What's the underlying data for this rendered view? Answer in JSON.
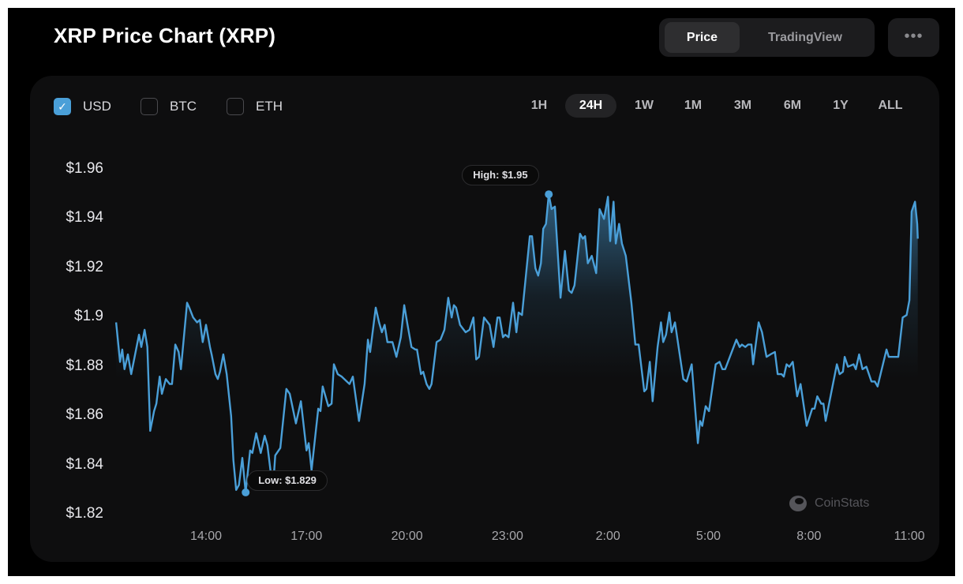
{
  "header": {
    "title": "XRP Price Chart (XRP)",
    "view_toggle": [
      {
        "label": "Price",
        "active": true
      },
      {
        "label": "TradingView",
        "active": false
      }
    ],
    "more_icon": "more-horizontal-icon",
    "more_label": "•••"
  },
  "currencies": [
    {
      "label": "USD",
      "checked": true
    },
    {
      "label": "BTC",
      "checked": false
    },
    {
      "label": "ETH",
      "checked": false
    }
  ],
  "check_glyph": "✓",
  "ranges": [
    {
      "label": "1H",
      "active": false
    },
    {
      "label": "24H",
      "active": true
    },
    {
      "label": "1W",
      "active": false
    },
    {
      "label": "1M",
      "active": false
    },
    {
      "label": "3M",
      "active": false
    },
    {
      "label": "6M",
      "active": false
    },
    {
      "label": "1Y",
      "active": false
    },
    {
      "label": "ALL",
      "active": false
    }
  ],
  "watermark": "CoinStats",
  "colors": {
    "line": "#4a9fd8",
    "background": "#0e0e0f",
    "accent": "#4a9fd8"
  },
  "chart_data": {
    "type": "area",
    "title": "",
    "xlabel": "",
    "ylabel": "",
    "currency": "USD",
    "ylim": [
      1.82,
      1.96
    ],
    "y_ticks": [
      1.96,
      1.94,
      1.92,
      1.9,
      1.88,
      1.86,
      1.84,
      1.82
    ],
    "y_tick_labels": [
      "$1.96",
      "$1.94",
      "$1.92",
      "$1.9",
      "$1.88",
      "$1.86",
      "$1.84",
      "$1.82"
    ],
    "x_tick_labels": [
      "14:00",
      "17:00",
      "20:00",
      "23:00",
      "2:00",
      "5:00",
      "8:00",
      "11:00"
    ],
    "grid": false,
    "legend": "none",
    "annotations": {
      "high": {
        "label": "High: $1.95",
        "time": "0:14",
        "value": 1.95
      },
      "low": {
        "label": "Low: $1.829",
        "time": "15:11",
        "value": 1.829
      }
    },
    "x": [
      "11:19",
      "11:26",
      "11:30",
      "11:34",
      "11:40",
      "11:46",
      "12:00",
      "12:04",
      "12:10",
      "12:15",
      "12:20",
      "12:27",
      "12:31",
      "12:37",
      "12:41",
      "12:48",
      "12:55",
      "12:59",
      "13:05",
      "13:11",
      "13:15",
      "13:26",
      "13:30",
      "13:37",
      "13:44",
      "13:49",
      "13:54",
      "14:00",
      "14:07",
      "14:10",
      "14:17",
      "14:21",
      "14:25",
      "14:31",
      "14:37",
      "14:45",
      "14:49",
      "14:54",
      "14:59",
      "15:05",
      "15:11",
      "15:19",
      "15:23",
      "15:30",
      "15:38",
      "15:45",
      "15:50",
      "15:56",
      "16:00",
      "16:04",
      "16:13",
      "16:24",
      "16:30",
      "16:41",
      "16:50",
      "17:00",
      "17:04",
      "17:09",
      "17:21",
      "17:25",
      "17:29",
      "17:39",
      "17:45",
      "17:49",
      "17:56",
      "18:03",
      "18:17",
      "18:23",
      "18:34",
      "18:44",
      "18:50",
      "18:54",
      "19:04",
      "19:10",
      "19:15",
      "19:20",
      "19:25",
      "19:34",
      "19:41",
      "19:49",
      "19:55",
      "20:01",
      "20:08",
      "20:15",
      "20:18",
      "20:25",
      "20:29",
      "20:35",
      "20:40",
      "20:44",
      "20:53",
      "21:00",
      "21:07",
      "21:14",
      "21:20",
      "21:24",
      "21:28",
      "21:35",
      "21:45",
      "21:52",
      "21:59",
      "22:04",
      "22:09",
      "22:18",
      "22:28",
      "22:35",
      "22:42",
      "22:46",
      "22:52",
      "22:56",
      "23:02",
      "23:10",
      "23:16",
      "23:20",
      "23:26",
      "23:40",
      "23:44",
      "23:50",
      "23:55",
      "0:00",
      "0:04",
      "0:09",
      "0:14",
      "0:19",
      "0:25",
      "0:35",
      "0:43",
      "0:50",
      "0:55",
      "1:00",
      "1:10",
      "1:15",
      "1:19",
      "1:24",
      "1:31",
      "1:39",
      "1:45",
      "1:53",
      "2:00",
      "2:04",
      "2:10",
      "2:14",
      "2:20",
      "2:25",
      "2:32",
      "2:42",
      "2:49",
      "2:55",
      "3:05",
      "3:09",
      "3:15",
      "3:20",
      "3:29",
      "3:35",
      "3:39",
      "3:44",
      "3:50",
      "3:54",
      "4:00",
      "4:15",
      "4:21",
      "4:30",
      "4:41",
      "4:45",
      "4:49",
      "4:55",
      "5:01",
      "5:13",
      "5:20",
      "5:25",
      "5:30",
      "5:50",
      "5:56",
      "6:00",
      "6:06",
      "6:11",
      "6:17",
      "6:20",
      "6:30",
      "6:36",
      "6:44",
      "6:51",
      "6:59",
      "7:04",
      "7:11",
      "7:15",
      "7:20",
      "7:25",
      "7:31",
      "7:39",
      "7:45",
      "7:56",
      "8:06",
      "8:10",
      "8:15",
      "8:22",
      "8:26",
      "8:30",
      "8:50",
      "8:55",
      "9:01",
      "9:04",
      "9:10",
      "9:20",
      "9:24",
      "9:30",
      "9:36",
      "9:43",
      "9:52",
      "9:58",
      "10:03",
      "10:19",
      "10:23",
      "10:36",
      "10:40",
      "10:48",
      "10:55",
      "11:00",
      "11:04",
      "11:10",
      "11:14",
      "11:15"
    ],
    "series": [
      {
        "values": [
          1.898,
          1.882,
          1.887,
          1.879,
          1.885,
          1.877,
          1.893,
          1.888,
          1.895,
          1.888,
          1.854,
          1.862,
          1.865,
          1.876,
          1.869,
          1.875,
          1.873,
          1.873,
          1.889,
          1.886,
          1.879,
          1.906,
          1.904,
          1.9,
          1.898,
          1.899,
          1.89,
          1.897,
          1.888,
          1.885,
          1.877,
          1.875,
          1.878,
          1.885,
          1.877,
          1.86,
          1.842,
          1.83,
          1.832,
          1.843,
          1.829,
          1.846,
          1.845,
          1.853,
          1.845,
          1.852,
          1.848,
          1.837,
          1.831,
          1.844,
          1.847,
          1.871,
          1.869,
          1.857,
          1.866,
          1.846,
          1.849,
          1.838,
          1.863,
          1.862,
          1.872,
          1.864,
          1.865,
          1.881,
          1.877,
          1.876,
          1.873,
          1.876,
          1.858,
          1.873,
          1.891,
          1.886,
          1.904,
          1.898,
          1.894,
          1.897,
          1.89,
          1.89,
          1.884,
          1.892,
          1.905,
          1.897,
          1.888,
          1.887,
          1.887,
          1.877,
          1.878,
          1.873,
          1.871,
          1.873,
          1.89,
          1.891,
          1.895,
          1.908,
          1.9,
          1.905,
          1.904,
          1.897,
          1.894,
          1.895,
          1.9,
          1.883,
          1.884,
          1.9,
          1.897,
          1.888,
          1.9,
          1.9,
          1.892,
          1.893,
          1.892,
          1.906,
          1.894,
          1.902,
          1.901,
          1.933,
          1.933,
          1.92,
          1.917,
          1.922,
          1.936,
          1.938,
          1.95,
          1.944,
          1.945,
          1.908,
          1.927,
          1.911,
          1.91,
          1.913,
          1.934,
          1.932,
          1.933,
          1.922,
          1.925,
          1.918,
          1.944,
          1.94,
          1.949,
          1.931,
          1.947,
          1.93,
          1.938,
          1.93,
          1.925,
          1.906,
          1.889,
          1.889,
          1.87,
          1.871,
          1.882,
          1.866,
          1.888,
          1.898,
          1.89,
          1.893,
          1.902,
          1.894,
          1.898,
          1.875,
          1.874,
          1.881,
          1.849,
          1.858,
          1.856,
          1.864,
          1.862,
          1.881,
          1.882,
          1.879,
          1.879,
          1.891,
          1.888,
          1.889,
          1.888,
          1.889,
          1.889,
          1.881,
          1.898,
          1.894,
          1.884,
          1.885,
          1.886,
          1.877,
          1.877,
          1.876,
          1.881,
          1.88,
          1.882,
          1.868,
          1.873,
          1.856,
          1.863,
          1.863,
          1.868,
          1.865,
          1.865,
          1.858,
          1.881,
          1.877,
          1.878,
          1.884,
          1.88,
          1.881,
          1.879,
          1.885,
          1.879,
          1.88,
          1.874,
          1.874,
          1.872,
          1.887,
          1.884,
          1.884,
          1.884,
          1.9,
          1.901,
          1.907,
          1.943,
          1.947,
          1.938,
          1.932
        ]
      }
    ]
  }
}
